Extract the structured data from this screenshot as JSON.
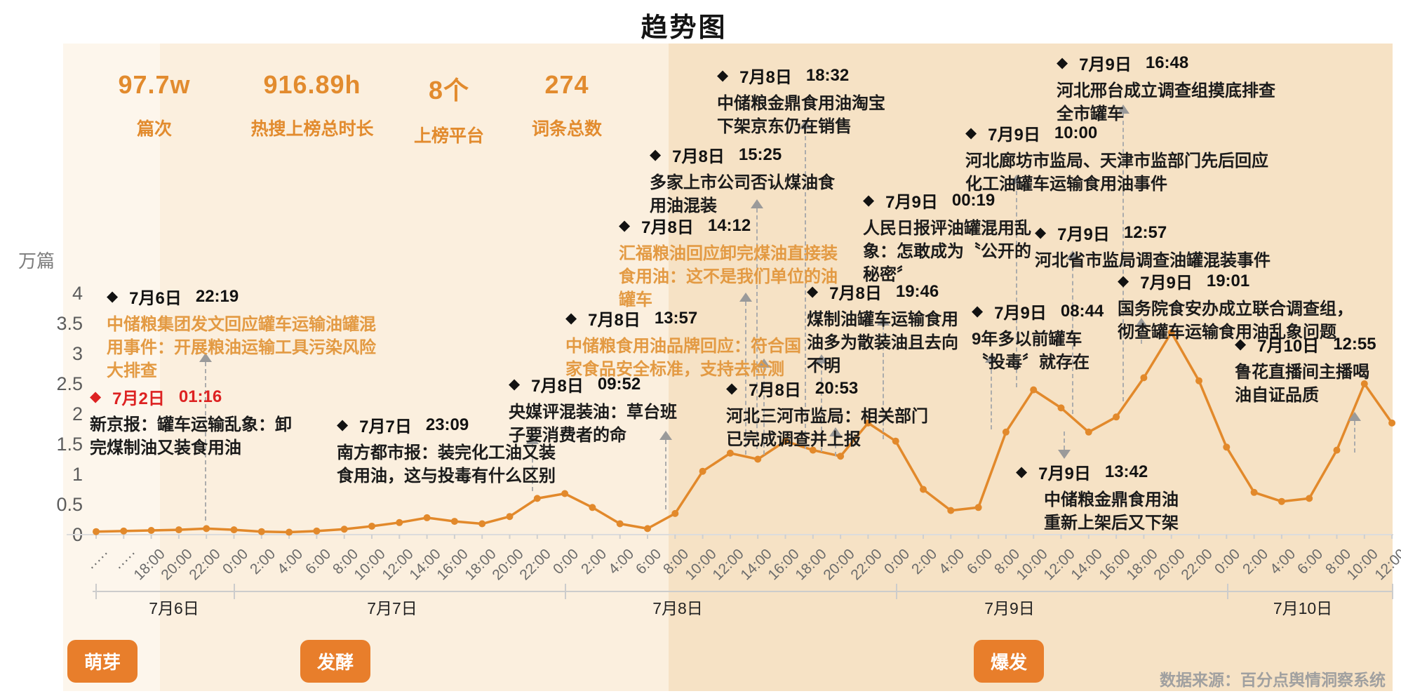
{
  "title": "趋势图",
  "stats": [
    {
      "value": "97.7w",
      "label": "篇次"
    },
    {
      "value": "916.89h",
      "label": "热搜上榜总时长"
    },
    {
      "value": "8个",
      "label": "上榜平台"
    },
    {
      "value": "274",
      "label": "词条总数"
    }
  ],
  "axis": {
    "unit": "万篇",
    "y_ticks": [
      "4",
      "3.5",
      "3",
      "2.5",
      "2",
      "1.5",
      "1",
      "0.5",
      "0"
    ]
  },
  "dates": [
    "7月6日",
    "7月7日",
    "7月8日",
    "7月9日",
    "7月10日"
  ],
  "phases": [
    {
      "label": "萌芽"
    },
    {
      "label": "发酵"
    },
    {
      "label": "爆发"
    }
  ],
  "source": "数据来源：百分点舆情洞察系统",
  "events": [
    {
      "date": "7月2日",
      "time": "01:16",
      "body": "新京报：罐车运输乱象：卸\n完煤制油又装食用油"
    },
    {
      "date": "7月6日",
      "time": "22:19",
      "body": "中储粮集团发文回应罐车运输油罐混\n用事件：开展粮油运输工具污染风险\n大排查"
    },
    {
      "date": "7月7日",
      "time": "23:09",
      "body": "南方都市报：装完化工油又装\n食用油，这与投毒有什么区别"
    },
    {
      "date": "7月8日",
      "time": "09:52",
      "body": "央媒评混装油：草台班\n子要消费者的命"
    },
    {
      "date": "7月8日",
      "time": "13:57",
      "body": "中储粮食用油品牌回应：符合国\n家食品安全标准，支持去检测"
    },
    {
      "date": "7月8日",
      "time": "14:12",
      "body": "汇福粮油回应卸完煤油直接装\n食用油：这不是我们单位的油\n罐车"
    },
    {
      "date": "7月8日",
      "time": "15:25",
      "body": "多家上市公司否认煤油食\n用油混装"
    },
    {
      "date": "7月8日",
      "time": "18:32",
      "body": "中储粮金鼎食用油淘宝\n下架京东仍在销售"
    },
    {
      "date": "7月8日",
      "time": "19:46",
      "body": "煤制油罐车运输食用\n油多为散装油且去向\n不明"
    },
    {
      "date": "7月8日",
      "time": "20:53",
      "body": "河北三河市监局：相关部门\n已完成调查并上报"
    },
    {
      "date": "7月9日",
      "time": "00:19",
      "body": "人民日报评油罐混用乱\n象：怎敢成为〝公开的\n秘密〞"
    },
    {
      "date": "7月9日",
      "time": "08:44",
      "body": "9年多以前罐车\n〝投毒〞就存在"
    },
    {
      "date": "7月9日",
      "time": "10:00",
      "body": "河北廊坊市监局、天津市监部门先后回应\n化工油罐车运输食用油事件"
    },
    {
      "date": "7月9日",
      "time": "12:57",
      "body": "河北省市监局调查油罐混装事件"
    },
    {
      "date": "7月9日",
      "time": "13:42",
      "body": "中储粮金鼎食用油\n重新上架后又下架"
    },
    {
      "date": "7月9日",
      "time": "16:48",
      "body": "河北邢台成立调查组摸底排查\n全市罐车"
    },
    {
      "date": "7月9日",
      "time": "19:01",
      "body": "国务院食安办成立联合调查组，\n彻查罐车运输食用油乱象问题"
    },
    {
      "date": "7月10日",
      "time": "12:55",
      "body": "鲁花直播间主播喝\n油自证品质"
    }
  ],
  "chart_data": {
    "type": "line",
    "title": "趋势图",
    "ylabel": "万篇",
    "ylim": [
      0,
      4
    ],
    "grid": false,
    "line_color": "#e2892b",
    "x_dates": [
      "7月6日",
      "7月7日",
      "7月8日",
      "7月9日",
      "7月10日"
    ],
    "categories": [
      "·····",
      "·····",
      "18:00",
      "20:00",
      "22:00",
      "0:00",
      "2:00",
      "4:00",
      "6:00",
      "8:00",
      "10:00",
      "12:00",
      "14:00",
      "16:00",
      "18:00",
      "20:00",
      "22:00",
      "0:00",
      "2:00",
      "4:00",
      "6:00",
      "8:00",
      "10:00",
      "12:00",
      "14:00",
      "16:00",
      "18:00",
      "20:00",
      "22:00",
      "0:00",
      "2:00",
      "4:00",
      "6:00",
      "8:00",
      "10:00",
      "12:00",
      "14:00",
      "16:00",
      "18:00",
      "20:00",
      "22:00",
      "0:00",
      "2:00",
      "4:00",
      "6:00",
      "8:00",
      "10:00",
      "12:00"
    ],
    "values": [
      0.05,
      0.06,
      0.07,
      0.08,
      0.1,
      0.08,
      0.05,
      0.04,
      0.06,
      0.09,
      0.14,
      0.2,
      0.28,
      0.22,
      0.18,
      0.3,
      0.6,
      0.68,
      0.45,
      0.18,
      0.1,
      0.35,
      1.05,
      1.35,
      1.25,
      1.55,
      1.4,
      1.3,
      1.85,
      1.55,
      0.75,
      0.4,
      0.45,
      1.7,
      2.4,
      2.1,
      1.7,
      1.95,
      2.6,
      3.35,
      2.55,
      1.45,
      0.7,
      0.55,
      0.6,
      1.4,
      2.5,
      1.85
    ]
  }
}
